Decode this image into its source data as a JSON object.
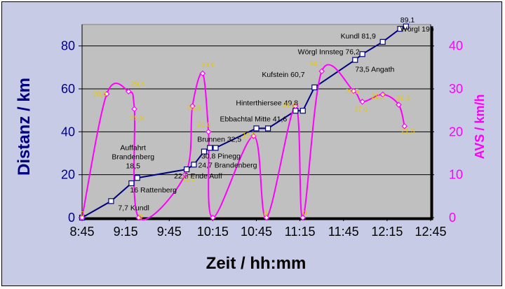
{
  "chart_data": {
    "type": "line",
    "xlabel": "Zeit / hh:mm",
    "ylabel_left": "Distanz / km",
    "ylabel_right": "AVS / km/h",
    "x_ticks": [
      "8:45",
      "9:15",
      "9:45",
      "10:15",
      "10:45",
      "11:15",
      "11:45",
      "12:15",
      "12:45"
    ],
    "xlim": [
      "8:45",
      "12:45"
    ],
    "y_left_ticks": [
      "0",
      "20",
      "40",
      "60",
      "80"
    ],
    "ylim_left": [
      0,
      90
    ],
    "y_right_ticks": [
      "0",
      "10",
      "20",
      "30",
      "40"
    ],
    "ylim_right": [
      0,
      45
    ],
    "grid": "horizontal",
    "colors": {
      "distance": "#000080",
      "speed": "#ff00ff",
      "speed_labels": "#e6c800",
      "plot_bg": "#c0c0c0",
      "outer_bg": "#c7cbe5"
    },
    "series": [
      {
        "axis": "left",
        "color": "#000080",
        "marker": "square",
        "points": [
          {
            "x": "8:45",
            "y": 0
          },
          {
            "x": "9:05",
            "y": 7.7,
            "label": "7,7 Kundl"
          },
          {
            "x": "9:19",
            "y": 16,
            "label": "16 Rattenberg"
          },
          {
            "x": "9:23",
            "y": 18.5,
            "label": "Auffahrt\nBrandenberg\n18,5"
          },
          {
            "x": "9:57",
            "y": 22.5,
            "label": "22,5 Ende Auff"
          },
          {
            "x": "10:02",
            "y": 24.7,
            "label": "24,7 Brandenberg"
          },
          {
            "x": "10:09",
            "y": 30.8,
            "label": "30,8 Pinegg"
          },
          {
            "x": "10:13",
            "y": 32.5,
            "label": "Brunnen 32,5"
          },
          {
            "x": "10:17",
            "y": 32.5
          },
          {
            "x": "10:45",
            "y": 41.6,
            "label": "Ebbachtal Mitte 41,6"
          },
          {
            "x": "10:53",
            "y": 41.6
          },
          {
            "x": "11:12",
            "y": 49.8,
            "label": "Hinterthiersee 49,8"
          },
          {
            "x": "11:17",
            "y": 49.8
          },
          {
            "x": "11:25",
            "y": 60.7,
            "label": "Kufstein 60,7"
          },
          {
            "x": "11:53",
            "y": 73.5,
            "label": "73,5 Angath"
          },
          {
            "x": "11:58",
            "y": 76.2,
            "label": "Wörgl Innsteg 76,2"
          },
          {
            "x": "12:12",
            "y": 81.9,
            "label": "Kundl 81,9"
          },
          {
            "x": "12:24",
            "y": 88
          },
          {
            "x": "12:28",
            "y": 89.1,
            "label": "89,1\nWörgl 19b"
          }
        ]
      },
      {
        "axis": "right",
        "color": "#ff00ff",
        "marker": "diamond",
        "points": [
          {
            "x": "8:45",
            "y": 0,
            "label": "0"
          },
          {
            "x": "9:02",
            "y": 28.8,
            "label": "28,8"
          },
          {
            "x": "9:17",
            "y": 29.4,
            "label": "29,4"
          },
          {
            "x": "9:21",
            "y": 25.3,
            "label": "25,3"
          },
          {
            "x": "9:24",
            "y": 0,
            "label": "0"
          },
          {
            "x": "9:56",
            "y": 10,
            "label": "10,0"
          },
          {
            "x": "10:01",
            "y": 26,
            "label": "26,0"
          },
          {
            "x": "10:08",
            "y": 33.6,
            "label": "33,6"
          },
          {
            "x": "10:12",
            "y": 20,
            "label": "20,0"
          },
          {
            "x": "10:15",
            "y": 0
          },
          {
            "x": "10:43",
            "y": 19,
            "label": "19,0"
          },
          {
            "x": "10:52",
            "y": 0,
            "label": "0"
          },
          {
            "x": "11:12",
            "y": 26,
            "label": "26,0"
          },
          {
            "x": "11:17",
            "y": 0,
            "label": "0"
          },
          {
            "x": "11:30",
            "y": 34.1,
            "label": "34,1"
          },
          {
            "x": "11:52",
            "y": 29.5,
            "label": "29,5"
          },
          {
            "x": "11:58",
            "y": 27,
            "label": "27,0"
          },
          {
            "x": "12:12",
            "y": 28.7,
            "label": "28,7"
          },
          {
            "x": "12:23",
            "y": 26.3,
            "label": "26,3"
          },
          {
            "x": "12:27",
            "y": 21.3,
            "label": "21,3"
          }
        ]
      }
    ]
  }
}
